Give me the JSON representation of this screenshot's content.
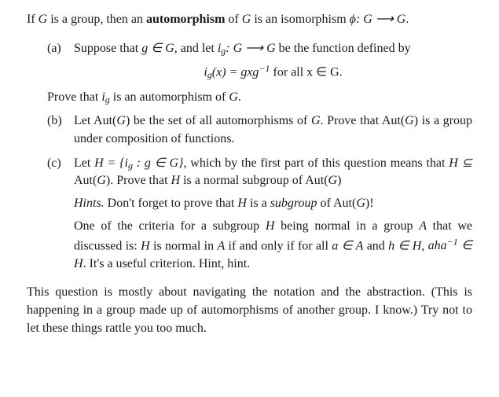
{
  "intro": {
    "p1a": "If ",
    "G1": "G",
    "p1b": " is a group, then an ",
    "auto": "automorphism",
    "p1c": " of ",
    "G2": "G",
    "p1d": " is an isomorphism ",
    "phi": "ϕ: G ⟶ G",
    "p1e": "."
  },
  "a": {
    "label": "(a)",
    "t1": "Suppose that ",
    "e1": "g ∈ G",
    "t2": ", and let ",
    "e2": "i",
    "e2sub": "g",
    "e2b": ": G ⟶ G",
    "t3": " be the function defined by",
    "formula_l": "i",
    "formula_sub": "g",
    "formula_mid": "(x) = gxg",
    "formula_sup": "−1",
    "formula_r": " for all x ∈ G.",
    "t4a": "Prove that ",
    "e3": "i",
    "e3sub": "g",
    "t4b": " is an automorphism of ",
    "e4": "G",
    "t4c": "."
  },
  "b": {
    "label": "(b)",
    "t1": "Let Aut(",
    "G1": "G",
    "t2": ") be the set of all automorphisms of ",
    "G2": "G",
    "t3": ". Prove that Aut(",
    "G3": "G",
    "t4": ") is a group under composition of functions."
  },
  "c": {
    "label": "(c)",
    "t1": "Let ",
    "e1a": "H = {i",
    "e1sub": "g",
    "e1b": " : g ∈ G}",
    "t2": ", which by the first part of this question means that ",
    "e2": "H ⊆ ",
    "t2b": "Aut(",
    "G1": "G",
    "t2c": "). Prove that ",
    "e3": "H",
    "t3": " is a normal subgroup of Aut(",
    "G2": "G",
    "t4": ")",
    "hints_label": "Hints.",
    "h1a": " Don't forget to prove that ",
    "h1H": "H",
    "h1b": " is a ",
    "h1sub": "subgroup",
    "h1c": " of Aut(",
    "h1G": "G",
    "h1d": ")!",
    "h2a": "One of the criteria for a subgroup ",
    "h2H": "H",
    "h2b": " being normal in a group ",
    "h2A": "A",
    "h2c": " that we discussed is: ",
    "h2H2": "H",
    "h2d": " is normal in ",
    "h2A2": "A",
    "h2e": " if and only if for all ",
    "h2e1": "a ∈ A",
    "h2f": " and ",
    "h2e2": "h ∈ H",
    "h2g": ", ",
    "h2e3a": "aha",
    "h2e3sup": "−1",
    "h2e3b": " ∈ H",
    "h2h": ". It's a useful criterion. Hint, hint."
  },
  "outro": {
    "t": "This question is mostly about navigating the notation and the abstraction. (This is happening in a group made up of automorphisms of another group. I know.) Try not to let these things rattle you too much."
  }
}
